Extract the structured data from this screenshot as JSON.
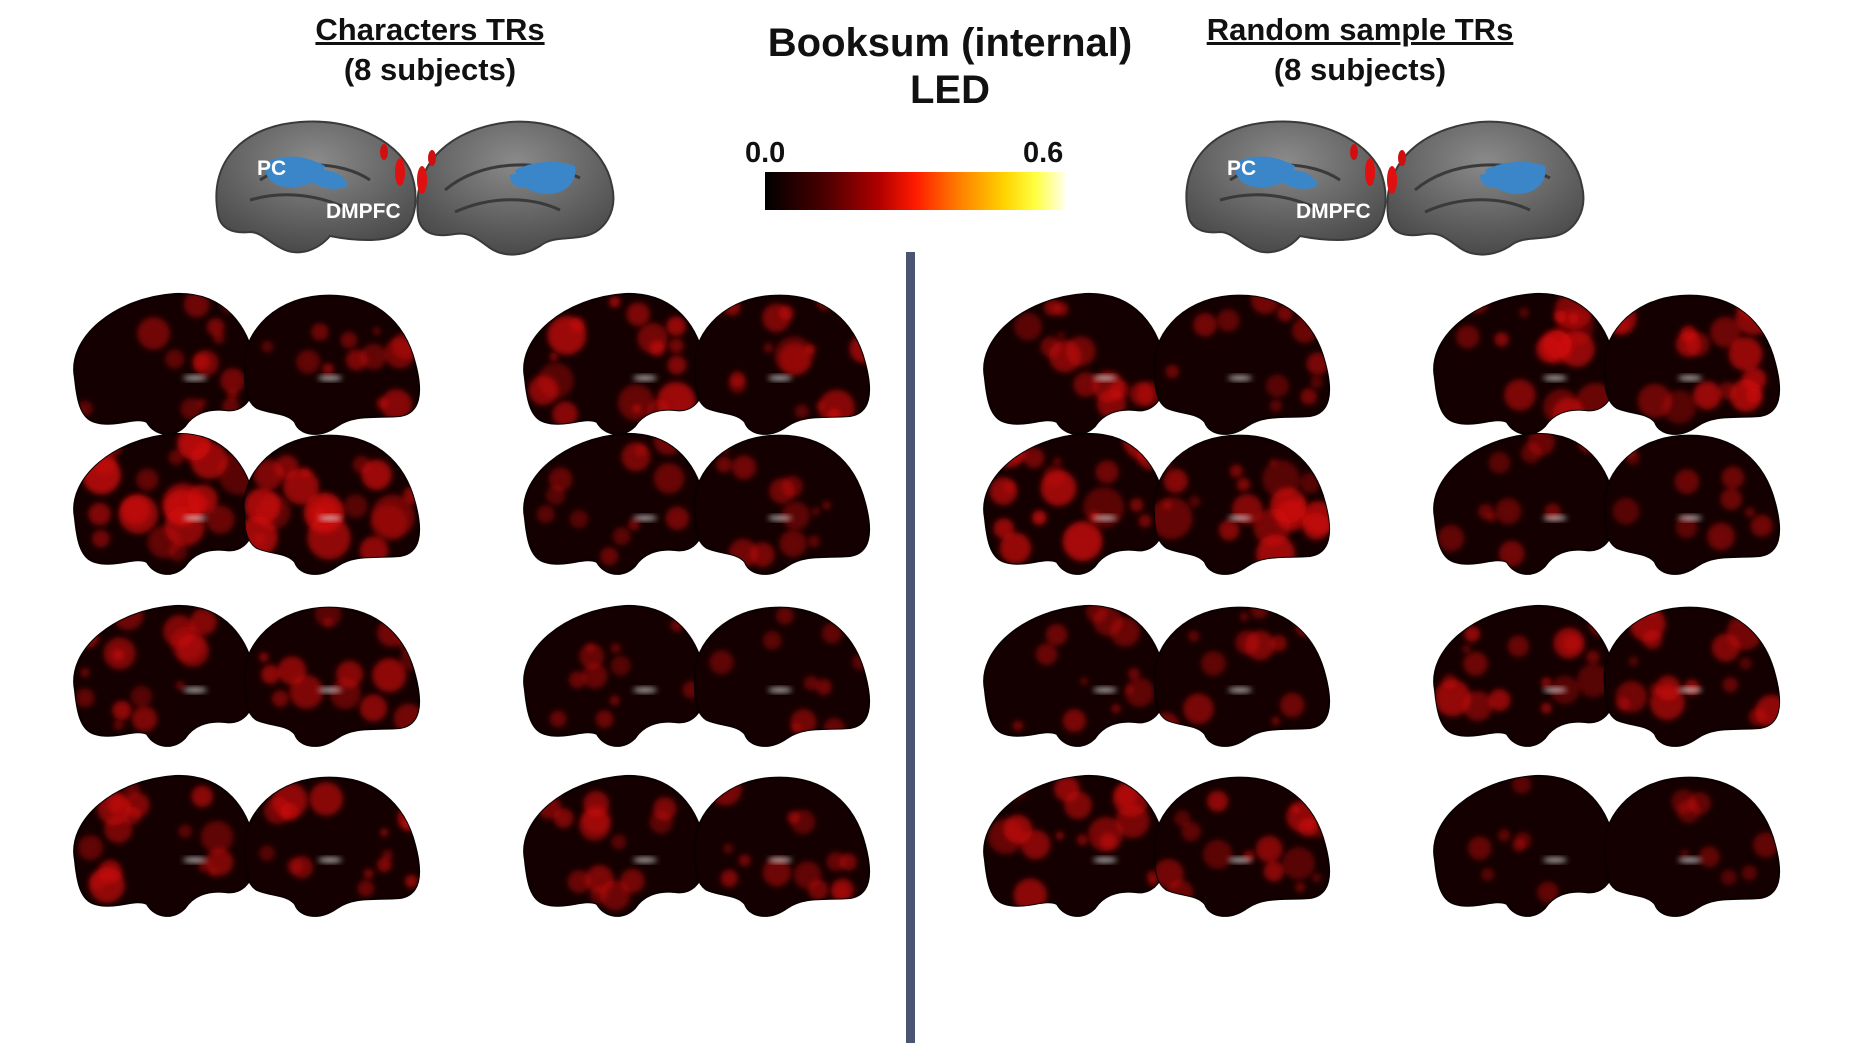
{
  "title": {
    "line1": "Booksum (internal)",
    "line2": "LED"
  },
  "colorbar": {
    "min_label": "0.0",
    "max_label": "0.6",
    "min": 0.0,
    "max": 0.6,
    "colormap": [
      "#000000",
      "#b00000",
      "#ff1a00",
      "#ff7a00",
      "#ffff40",
      "#ffffe8"
    ]
  },
  "left_panel": {
    "title_line1": "Characters TRs",
    "title_line2": "(8 subjects)"
  },
  "right_panel": {
    "title_line1": "Random sample TRs",
    "title_line2": "(8 subjects)"
  },
  "roi_labels": {
    "pc": "PC",
    "dmpfc": "DMPFC"
  },
  "colors": {
    "roi_blue": "#3b86c8",
    "brain_gray": "#6e6e6e",
    "brain_dark": "#150000",
    "divider": "#4a5671"
  }
}
